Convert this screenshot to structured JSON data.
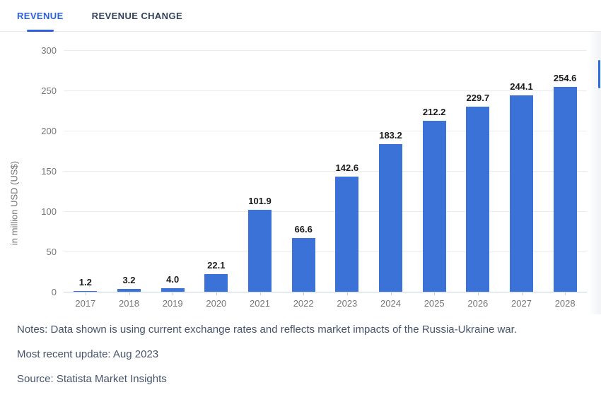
{
  "tabs": [
    {
      "label": "REVENUE",
      "active": true
    },
    {
      "label": "REVENUE CHANGE",
      "active": false
    }
  ],
  "chart_data": {
    "type": "bar",
    "categories": [
      "2017",
      "2018",
      "2019",
      "2020",
      "2021",
      "2022",
      "2023",
      "2024",
      "2025",
      "2026",
      "2027",
      "2028"
    ],
    "values": [
      1.2,
      3.2,
      4.0,
      22.1,
      101.9,
      66.6,
      142.6,
      183.2,
      212.2,
      229.7,
      244.1,
      254.6
    ],
    "value_labels": [
      "1.2",
      "3.2",
      "4.0",
      "22.1",
      "101.9",
      "66.6",
      "142.6",
      "183.2",
      "212.2",
      "229.7",
      "244.1",
      "254.6"
    ],
    "title": "",
    "xlabel": "",
    "ylabel": "in million USD (US$)",
    "ylim": [
      0,
      300
    ],
    "ytick_step": 50,
    "grid": true,
    "legend": false,
    "bar_color": "#3b72d8"
  },
  "footer": {
    "notes": "Notes: Data shown is using current exchange rates and reflects market impacts of the Russia-Ukraine war.",
    "update": "Most recent update: Aug 2023",
    "source": "Source: Statista Market Insights"
  },
  "colors": {
    "accent_blue": "#2b60e0",
    "bar_blue": "#3b72d8",
    "tab_inactive_text": "#33415c",
    "axis_text": "#757575",
    "value_label_text": "#1a1a1a",
    "baseline": "#c6d2e8",
    "gridline": "#ececec",
    "footer_text": "#46536b",
    "divider": "#e8eaee",
    "scrollbar_thumb": "#2f6ce0"
  }
}
